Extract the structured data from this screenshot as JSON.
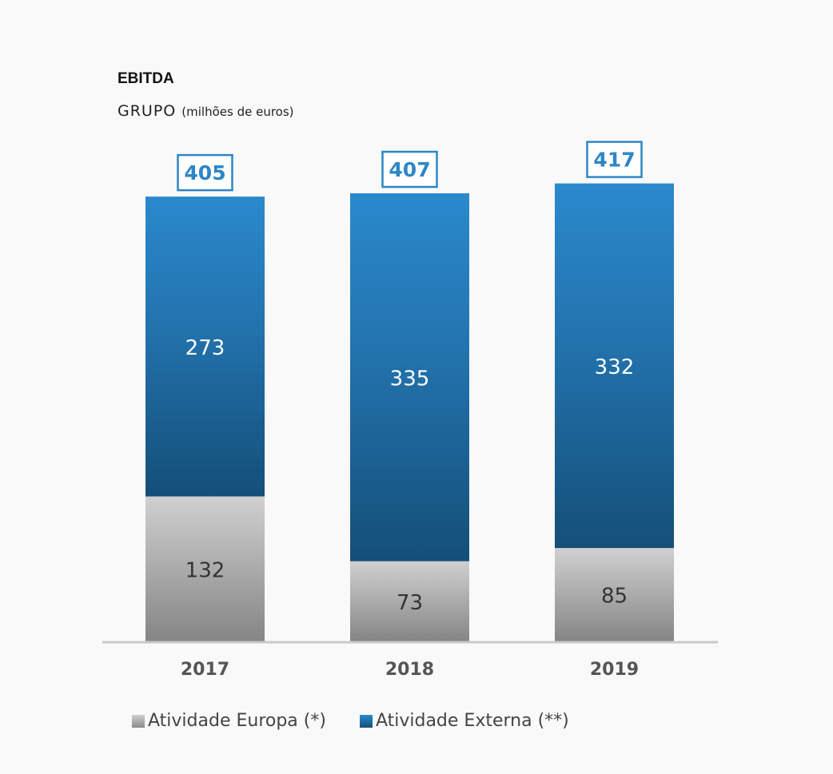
{
  "chart_data": {
    "type": "bar",
    "stacked": true,
    "title": "EBITDA",
    "subtitle": "GRUPO",
    "subtitle_unit": "(milhões de euros)",
    "categories": [
      "2017",
      "2018",
      "2019"
    ],
    "series": [
      {
        "name": "Atividade Europa (*)",
        "values": [
          132,
          73,
          85
        ],
        "color": "#b0b0b0"
      },
      {
        "name": "Atividade Externa (**)",
        "values": [
          273,
          335,
          332
        ],
        "color": "#2a86c8"
      }
    ],
    "totals": [
      405,
      407,
      417
    ],
    "xlabel": "",
    "ylabel": "",
    "ylim": [
      0,
      417
    ],
    "grid": false,
    "legend_position": "bottom"
  }
}
